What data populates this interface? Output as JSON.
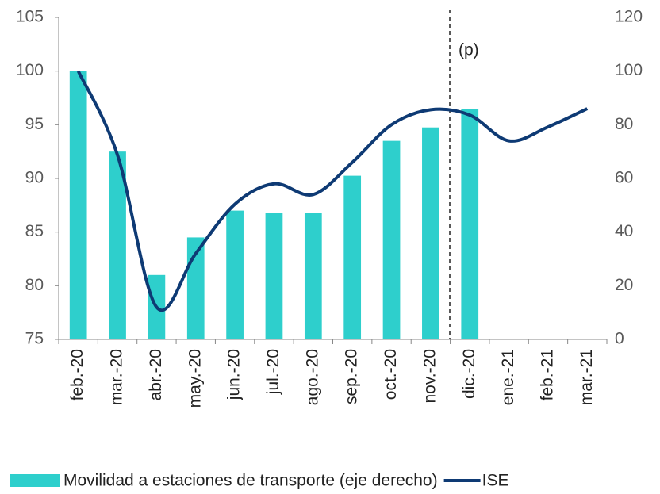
{
  "chart_data": {
    "type": "bar_line",
    "categories": [
      "feb.-20",
      "mar.-20",
      "abr.-20",
      "may.-20",
      "jun.-20",
      "jul.-20",
      "ago.-20",
      "sep.-20",
      "oct.-20",
      "nov.-20",
      "dic.-20",
      "ene.-21",
      "feb.-21",
      "mar.-21"
    ],
    "series": [
      {
        "name": "Movilidad a estaciones de transporte (eje derecho)",
        "color": "#2ecfcc",
        "axis": "y2",
        "kind": "bar",
        "values": [
          100,
          70,
          24,
          38,
          48,
          47,
          47,
          61,
          74,
          79,
          86,
          null,
          null,
          null
        ]
      },
      {
        "name": "ISE",
        "color": "#0e3a74",
        "axis": "y",
        "kind": "line",
        "values": [
          100,
          92.2,
          78,
          83,
          87.6,
          89.5,
          88.5,
          91.5,
          95,
          96.4,
          95.9,
          93.5,
          94.8,
          96.5
        ]
      }
    ],
    "ylim": [
      75,
      105
    ],
    "yticks": [
      75,
      80,
      85,
      90,
      95,
      100,
      105
    ],
    "y2lim": [
      0,
      120
    ],
    "y2ticks": [
      0,
      20,
      40,
      60,
      80,
      100,
      120
    ],
    "annotation": "(p)",
    "grid": false,
    "legend": "bottom"
  }
}
